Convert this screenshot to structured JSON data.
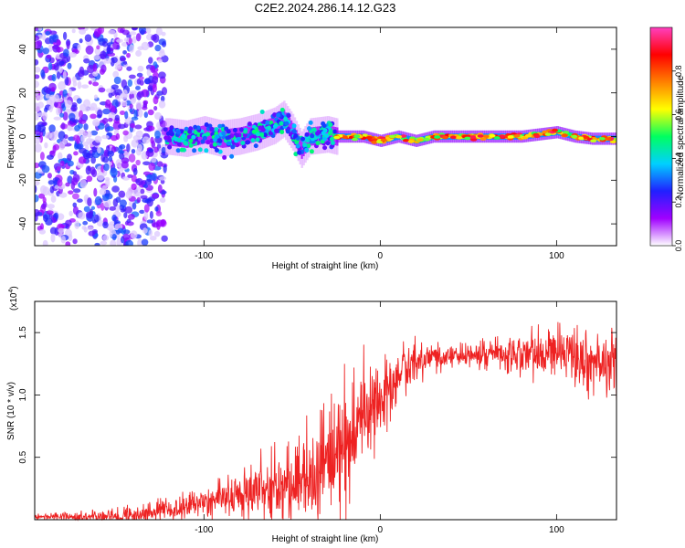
{
  "figure_title": "C2E2.2024.286.14.12.G23",
  "chart_data": [
    {
      "type": "heatmap",
      "title": "",
      "xlabel": "Height of straight line (km)",
      "ylabel": "Frequency (Hz)",
      "xlim": [
        -196,
        134
      ],
      "ylim": [
        -50,
        50
      ],
      "x_ticks": [
        "-100",
        "0",
        "100"
      ],
      "x_tick_values": [
        -100,
        0,
        100
      ],
      "y_ticks": [
        "-40",
        "-20",
        "0",
        "20",
        "40"
      ],
      "y_tick_values": [
        -40,
        -20,
        0,
        20,
        40
      ],
      "colorbar": {
        "label": "Normalized spectral amplitude",
        "range": [
          0,
          1
        ],
        "ticks": [
          "0.0",
          "0.2",
          "0.4",
          "0.6",
          "0.8"
        ],
        "tick_values": [
          0,
          0.2,
          0.4,
          0.6,
          0.8
        ],
        "colors": [
          "#ffffff",
          "#a000ff",
          "#2020ff",
          "#00d0ff",
          "#00ff60",
          "#ffff00",
          "#ff8000",
          "#ff0000",
          "#ff40c0"
        ]
      },
      "regions": [
        {
          "x_range": [
            -196,
            -122
          ],
          "freq_range": [
            -50,
            50
          ],
          "amplitude": 0.05,
          "pattern": "broadband noise"
        },
        {
          "x_range": [
            -122,
            -25
          ],
          "center_freq": [
            [
              -120,
              0
            ],
            [
              -110,
              -1
            ],
            [
              -100,
              1
            ],
            [
              -90,
              -1
            ],
            [
              -80,
              0
            ],
            [
              -70,
              2
            ],
            [
              -60,
              5
            ],
            [
              -55,
              8
            ],
            [
              -50,
              2
            ],
            [
              -45,
              -6
            ],
            [
              -40,
              0
            ],
            [
              -30,
              1
            ],
            [
              -25,
              0
            ]
          ],
          "spread": 6,
          "amplitude": 0.3
        },
        {
          "x_range": [
            -25,
            134
          ],
          "center_freq": [
            [
              -25,
              0
            ],
            [
              -10,
              0
            ],
            [
              0,
              -2
            ],
            [
              10,
              0
            ],
            [
              20,
              -2
            ],
            [
              30,
              0
            ],
            [
              40,
              0
            ],
            [
              60,
              0
            ],
            [
              80,
              0
            ],
            [
              100,
              2
            ],
            [
              110,
              0
            ],
            [
              120,
              -1
            ],
            [
              134,
              -1
            ]
          ],
          "spread": 2,
          "amplitude": 0.95
        }
      ]
    },
    {
      "type": "line",
      "title": "",
      "xlabel": "Height of straight line (km)",
      "ylabel": "SNR (10 * v/v)",
      "y_scale_label": "(x10",
      "y_scale_exp": "4",
      "xlim": [
        -196,
        134
      ],
      "ylim": [
        0,
        17500
      ],
      "x_ticks": [
        "-100",
        "0",
        "100"
      ],
      "x_tick_values": [
        -100,
        0,
        100
      ],
      "y_ticks": [
        "0.5",
        "1.0",
        "1.5"
      ],
      "y_tick_values": [
        5000,
        10000,
        15000
      ],
      "line_color": "#ee2222",
      "trend": {
        "x": [
          -196,
          -140,
          -110,
          -100,
          -80,
          -60,
          -40,
          -30,
          -20,
          -10,
          0,
          10,
          20,
          30,
          50,
          70,
          90,
          100,
          110,
          120,
          134
        ],
        "y": [
          200,
          300,
          1000,
          1600,
          2000,
          2300,
          3000,
          4200,
          5600,
          8000,
          9800,
          11500,
          12800,
          13000,
          13200,
          13400,
          13300,
          13300,
          13000,
          12500,
          12800
        ]
      },
      "noise_amplitude": {
        "x": [
          -196,
          -110,
          -80,
          -40,
          -20,
          0,
          20,
          40,
          80,
          110,
          134
        ],
        "y": [
          150,
          700,
          1400,
          3000,
          3500,
          2200,
          900,
          700,
          1200,
          1800,
          1800
        ]
      }
    }
  ]
}
